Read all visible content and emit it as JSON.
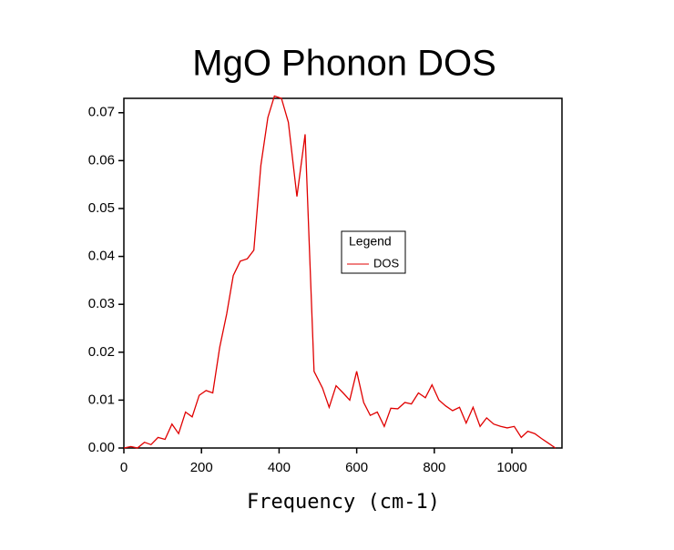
{
  "chart_data": {
    "type": "line",
    "title": "MgO Phonon DOS",
    "x_label": "Frequency (cm-1)",
    "legend_title": "Legend",
    "x": [
      0,
      18,
      35,
      53,
      70,
      88,
      106,
      124,
      141,
      159,
      176,
      194,
      212,
      229,
      247,
      265,
      282,
      300,
      318,
      335,
      353,
      371,
      388,
      406,
      424,
      446,
      467,
      490,
      512,
      529,
      547,
      565,
      582,
      600,
      618,
      635,
      653,
      671,
      688,
      706,
      724,
      741,
      759,
      777,
      794,
      812,
      829,
      847,
      865,
      882,
      900,
      918,
      935,
      953,
      971,
      988,
      1006,
      1024,
      1041,
      1059,
      1076,
      1094,
      1112
    ],
    "series": [
      {
        "name": "DOS",
        "color": "#e00000",
        "values": [
          0,
          0.0003,
          0,
          0.0012,
          0.0007,
          0.0022,
          0.0018,
          0.005,
          0.003,
          0.0075,
          0.0065,
          0.011,
          0.012,
          0.0115,
          0.021,
          0.028,
          0.036,
          0.039,
          0.0395,
          0.0413,
          0.059,
          0.069,
          0.0735,
          0.073,
          0.068,
          0.0525,
          0.0655,
          0.016,
          0.0125,
          0.0085,
          0.013,
          0.0115,
          0.01,
          0.016,
          0.0095,
          0.0068,
          0.0075,
          0.0045,
          0.0083,
          0.0082,
          0.0095,
          0.0092,
          0.0115,
          0.0105,
          0.0132,
          0.01,
          0.0088,
          0.0078,
          0.0085,
          0.0052,
          0.0085,
          0.0045,
          0.0063,
          0.005,
          0.0045,
          0.0042,
          0.0045,
          0.0022,
          0.0035,
          0.003,
          0.002,
          0.001,
          0
        ]
      }
    ],
    "xlim": [
      0,
      1129
    ],
    "ylim": [
      0,
      0.073
    ],
    "xticks": [
      0,
      200,
      400,
      600,
      800,
      1000
    ],
    "yticks": [
      {
        "value": 0,
        "label": "0.00"
      },
      {
        "value": 0.01,
        "label": "0.01"
      },
      {
        "value": 0.02,
        "label": "0.02"
      },
      {
        "value": 0.03,
        "label": "0.03"
      },
      {
        "value": 0.04,
        "label": "0.04"
      },
      {
        "value": 0.05,
        "label": "0.05"
      },
      {
        "value": 0.06,
        "label": "0.06"
      },
      {
        "value": 0.07,
        "label": "0.07"
      }
    ],
    "grid": false
  }
}
